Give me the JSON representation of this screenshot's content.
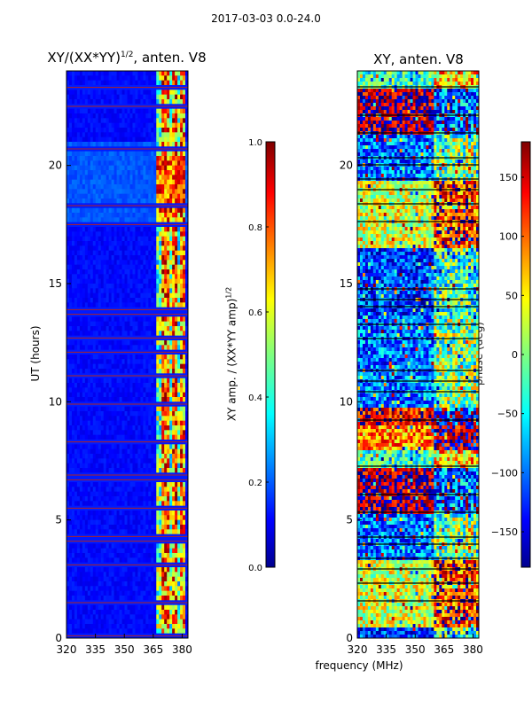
{
  "suptitle": "2017-03-03 0.0-24.0",
  "chart_data": [
    {
      "type": "heatmap",
      "title_prefix": "XY/(XX*YY)",
      "title_exponent": "1/2",
      "title_suffix": ", anten. V8",
      "xlabel": "",
      "ylabel": "UT (hours)",
      "xlim": [
        320,
        383
      ],
      "ylim": [
        0,
        24
      ],
      "xticks": [
        320,
        335,
        350,
        365,
        380
      ],
      "yticks": [
        0,
        5,
        10,
        15,
        20
      ],
      "colorbar": {
        "label": "XY amp. / (XX*YY amp)",
        "label_exponent": "1/2",
        "range": [
          0.0,
          1.0
        ],
        "ticks": [
          "0.0",
          "0.2",
          "0.4",
          "0.6",
          "0.8",
          "1.0"
        ],
        "colormap": "jet"
      },
      "notes": "mostly low (~0.1) below 360 MHz, high and noisy (0.3-1.0) above 360 MHz; red horizontal flag lines"
    },
    {
      "type": "heatmap",
      "title": "XY, anten. V8",
      "xlabel": "frequency (MHz)",
      "ylabel": "",
      "xlim": [
        320,
        383
      ],
      "ylim": [
        0,
        24
      ],
      "xticks": [
        320,
        335,
        350,
        365,
        380
      ],
      "yticks": [
        0,
        5,
        10,
        15,
        20
      ],
      "colorbar": {
        "label": "phase (deg)",
        "range": [
          -180,
          180
        ],
        "ticks": [
          "-150",
          "-100",
          "-50",
          "0",
          "50",
          "100",
          "150"
        ],
        "colormap": "jet"
      },
      "notes": "noisy phase, banded in time; black horizontal flag lines"
    }
  ]
}
